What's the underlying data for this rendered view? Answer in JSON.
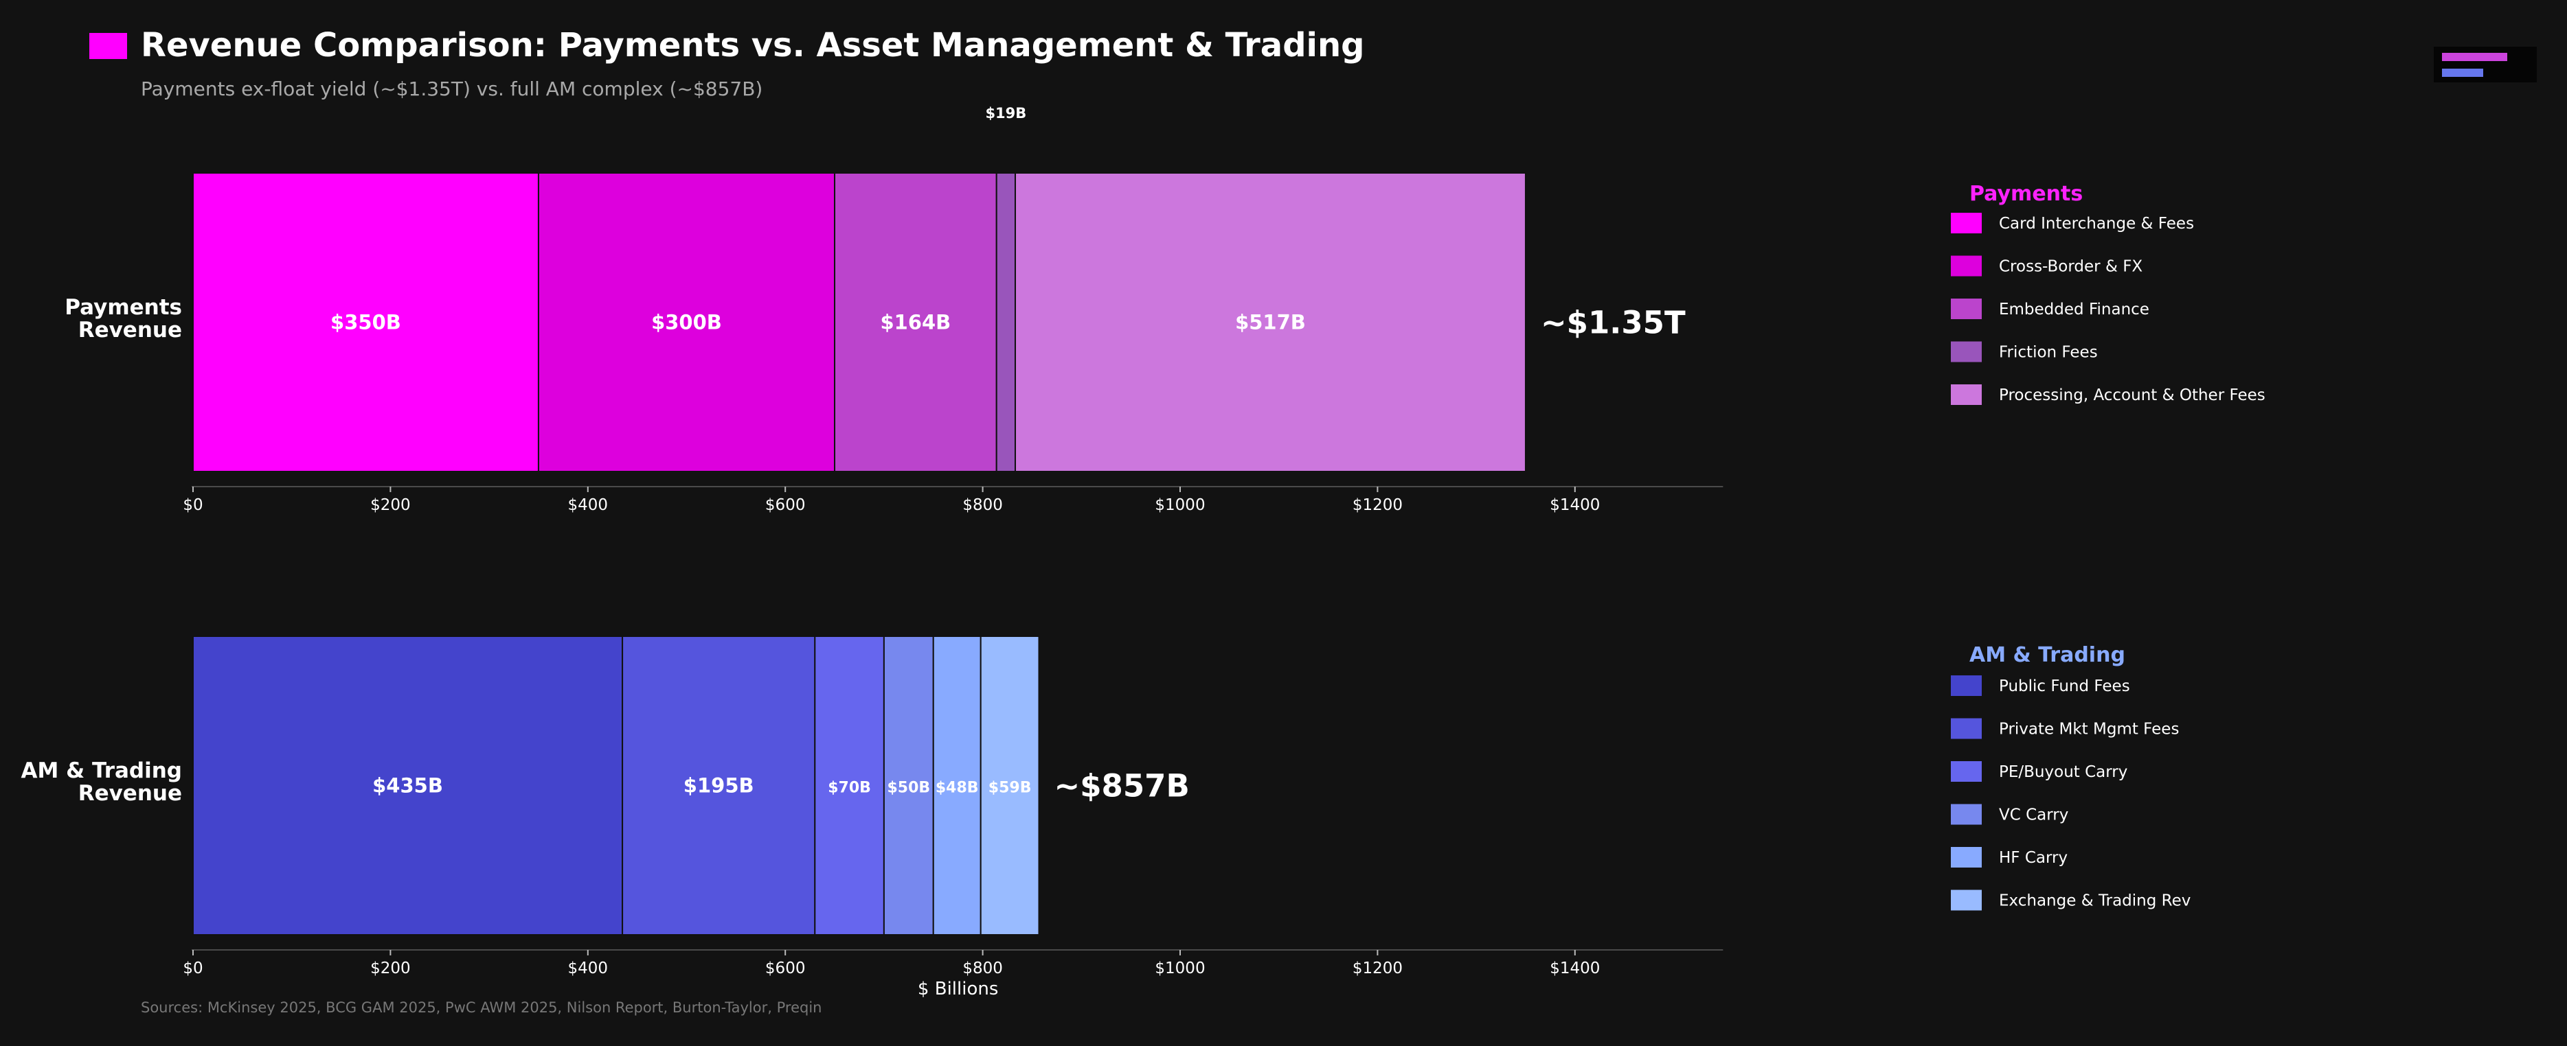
{
  "page": {
    "title": "Revenue Comparison: Payments vs. Asset Management & Trading",
    "subtitle": "Payments ex-float yield (~$1.35T) vs. full AM complex (~$857B)",
    "title_marker_color": "#ff00ff",
    "source": "Sources: McKinsey 2025, BCG GAM 2025, PwC AWM 2025, Nilson Report, Burton-Taylor, Preqin",
    "background_color": "#121212"
  },
  "chart_data": {
    "type": "bar",
    "orientation": "horizontal-stacked",
    "xlabel": "$ Billions",
    "xlim": [
      0,
      1550
    ],
    "ticks": [
      0,
      200,
      400,
      600,
      800,
      1000,
      1200,
      1400
    ],
    "tick_labels": [
      "$0",
      "$200",
      "$400",
      "$600",
      "$800",
      "$1000",
      "$1200",
      "$1400"
    ],
    "grid": false,
    "legend_placement": "right",
    "panels": [
      {
        "key": "payments",
        "row_label": "Payments\nRevenue",
        "legend_title": "Payments",
        "legend_title_color": "#ff22ff",
        "total_label": "~$1.35T",
        "show_xlabel": false,
        "series": [
          {
            "name": "Card Interchange & Fees",
            "value": 350,
            "label": "$350B",
            "color": "#ff00ff",
            "label_position": "inside"
          },
          {
            "name": "Cross-Border & FX",
            "value": 300,
            "label": "$300B",
            "color": "#dd00dd",
            "label_position": "inside"
          },
          {
            "name": "Embedded Finance",
            "value": 164,
            "label": "$164B",
            "color": "#bb44cc",
            "label_position": "inside"
          },
          {
            "name": "Friction Fees",
            "value": 19,
            "label": "$19B",
            "color": "#9955bb",
            "label_position": "above"
          },
          {
            "name": "Processing, Account & Other Fees",
            "value": 517,
            "label": "$517B",
            "color": "#cc77dd",
            "label_position": "inside"
          }
        ]
      },
      {
        "key": "am",
        "row_label": "AM & Trading\nRevenue",
        "legend_title": "AM & Trading",
        "legend_title_color": "#88aaff",
        "total_label": "~$857B",
        "show_xlabel": true,
        "series": [
          {
            "name": "Public Fund Fees",
            "value": 435,
            "label": "$435B",
            "color": "#4444cc",
            "label_position": "inside"
          },
          {
            "name": "Private Mkt Mgmt Fees",
            "value": 195,
            "label": "$195B",
            "color": "#5555dd",
            "label_position": "inside"
          },
          {
            "name": "PE/Buyout Carry",
            "value": 70,
            "label": "$70B",
            "color": "#6666ee",
            "label_position": "inside"
          },
          {
            "name": "VC Carry",
            "value": 50,
            "label": "$50B",
            "color": "#7788ee",
            "label_position": "inside"
          },
          {
            "name": "HF Carry",
            "value": 48,
            "label": "$48B",
            "color": "#88aaff",
            "label_position": "inside"
          },
          {
            "name": "Exchange & Trading Rev",
            "value": 59,
            "label": "$59B",
            "color": "#99bbff",
            "label_position": "inside"
          }
        ]
      }
    ]
  }
}
